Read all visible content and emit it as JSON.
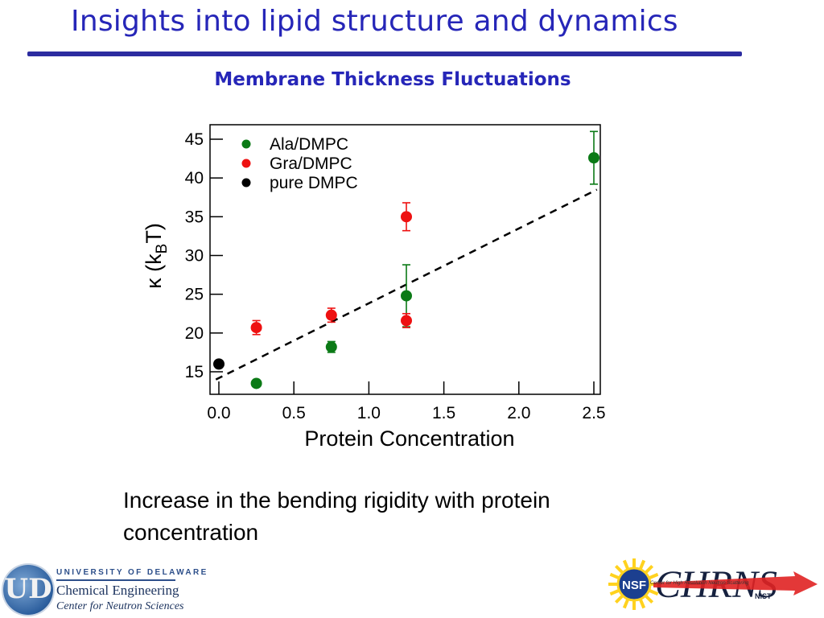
{
  "slide": {
    "title": "Insights into lipid structure and dynamics",
    "caption": "Increase in the bending rigidity with protein concentration"
  },
  "chart_data": {
    "type": "scatter",
    "title": "Membrane Thickness Fluctuations",
    "xlabel": "Protein Concentration",
    "ylabel": "κ (k_BT)",
    "xlim": [
      -0.05,
      2.55
    ],
    "ylim": [
      12.5,
      47
    ],
    "xticks": [
      0.0,
      0.5,
      1.0,
      1.5,
      2.0,
      2.5
    ],
    "xtick_labels": [
      "0.0",
      "0.5",
      "1.0",
      "1.5",
      "2.0",
      "2.5"
    ],
    "yticks": [
      15,
      20,
      25,
      30,
      35,
      40,
      45
    ],
    "ytick_labels": [
      "15",
      "20",
      "25",
      "30",
      "35",
      "40",
      "45"
    ],
    "grid": false,
    "legend_position": "top-left",
    "series": [
      {
        "name": "Ala/DMPC",
        "color": "#0b7a16",
        "points": [
          {
            "x": 0.25,
            "y": 13.5,
            "err": 0
          },
          {
            "x": 0.75,
            "y": 18.2,
            "err": 0.7
          },
          {
            "x": 1.25,
            "y": 24.8,
            "err": 4.0
          },
          {
            "x": 2.5,
            "y": 42.6,
            "err": 3.4
          }
        ]
      },
      {
        "name": "Gra/DMPC",
        "color": "#ee1111",
        "points": [
          {
            "x": 0.25,
            "y": 20.7,
            "err": 0.9
          },
          {
            "x": 0.75,
            "y": 22.3,
            "err": 0.9
          },
          {
            "x": 1.25,
            "y": 21.6,
            "err": 0.9
          },
          {
            "x": 1.25,
            "y": 35.0,
            "err": 1.8
          }
        ]
      },
      {
        "name": "pure DMPC",
        "color": "#000000",
        "points": [
          {
            "x": 0.0,
            "y": 16.0,
            "err": 0
          }
        ]
      }
    ],
    "trend_line": {
      "style": "dashed",
      "color": "#000000",
      "x": [
        -0.02,
        2.52
      ],
      "y": [
        14.0,
        38.5
      ]
    }
  },
  "logos": {
    "ud": {
      "seal_letters": "UD",
      "university": "UNIVERSITY OF DELAWARE",
      "department": "Chemical Engineering",
      "center": "Center for Neutron Sciences"
    },
    "chrns": {
      "wordmark": "CHRNS",
      "nsf": "NSF",
      "nist": "NIST",
      "tagline": "Center for High Resolution Neutron Scattering"
    }
  }
}
